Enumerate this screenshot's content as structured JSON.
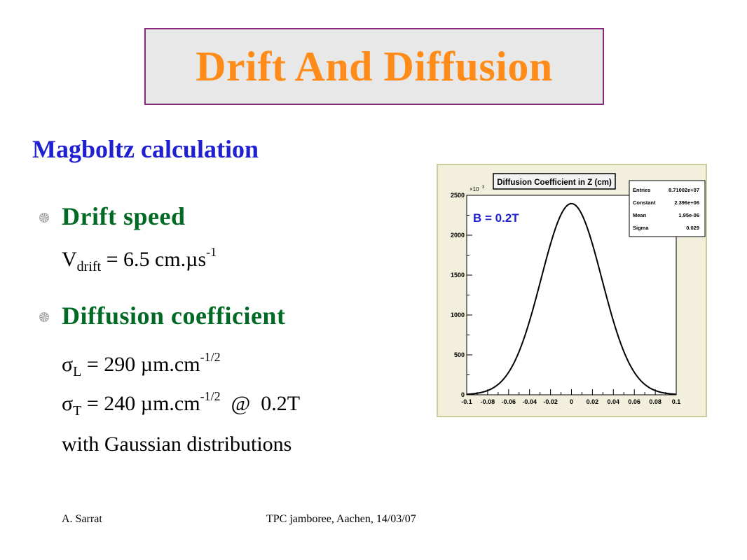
{
  "title": "Drift And Diffusion",
  "subtitle": "Magboltz calculation",
  "bullets": [
    {
      "label": "Drift speed"
    },
    {
      "label": "Diffusion coefficient"
    }
  ],
  "lines": {
    "vdrift": {
      "sym": "V",
      "sub": "drift",
      "eq": " = 6.5 cm.µs",
      "sup": "-1"
    },
    "sigmaL": {
      "sym": "σ",
      "sub": "L",
      "eq": " =  290 µm.cm",
      "sup": "-1/2"
    },
    "sigmaT": {
      "sym": "σ",
      "sub": "T",
      "eq": " = 240 µm.cm",
      "sup": "-1/2",
      "tail": "  @  0.2T"
    },
    "gauss": "with Gaussian distributions"
  },
  "footer": {
    "author": "A. Sarrat",
    "event": "TPC jamboree, Aachen, 14/03/07"
  },
  "chart_data": {
    "type": "line",
    "title": "Diffusion Coefficient in Z (cm)",
    "annotation": "B = 0.2T",
    "y_multiplier": "×10",
    "y_multiplier_exp": "3",
    "xlim": [
      -0.1,
      0.1
    ],
    "ylim": [
      0,
      2500
    ],
    "xticks": [
      "-0.1",
      "-0.08",
      "-0.06",
      "-0.04",
      "-0.02",
      "0",
      "0.02",
      "0.04",
      "0.06",
      "0.08",
      "0.1"
    ],
    "yticks": [
      "0",
      "500",
      "1000",
      "1500",
      "2000",
      "2500"
    ],
    "stats": [
      {
        "name": "Entries",
        "value": "8.71002e+07"
      },
      {
        "name": "Constant",
        "value": "2.396e+06"
      },
      {
        "name": "Mean",
        "value": "1.95e-06"
      },
      {
        "name": "Sigma",
        "value": "0.029"
      }
    ],
    "curve": {
      "mean": 0,
      "sigma": 0.029,
      "peak": 2396
    },
    "color": "#000000",
    "annotation_color": "#2020d0"
  }
}
